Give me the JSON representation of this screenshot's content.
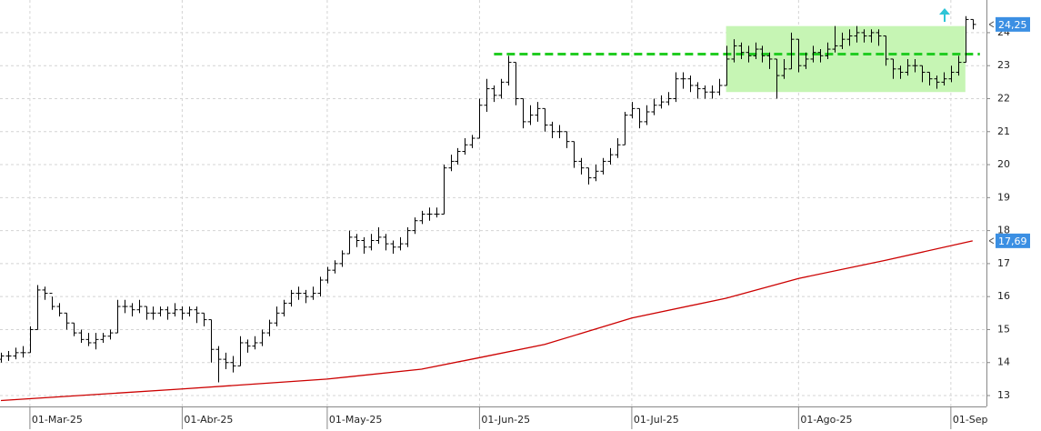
{
  "chart_data": {
    "type": "ohlc",
    "color": "#000000",
    "categories": [
      null,
      null,
      null,
      null,
      "01-Mar-25",
      null,
      null,
      null,
      null,
      null,
      null,
      null,
      null,
      null,
      null,
      null,
      null,
      null,
      null,
      null,
      null,
      null,
      null,
      null,
      null,
      "01-Abr-25",
      null,
      null,
      null,
      null,
      null,
      null,
      null,
      null,
      null,
      null,
      null,
      null,
      null,
      null,
      null,
      null,
      null,
      null,
      null,
      "01-May-25",
      null,
      null,
      null,
      null,
      null,
      null,
      null,
      null,
      null,
      null,
      null,
      null,
      null,
      null,
      null,
      null,
      null,
      null,
      null,
      null,
      "01-Jun-25",
      null,
      null,
      null,
      null,
      null,
      null,
      null,
      null,
      null,
      null,
      null,
      null,
      null,
      null,
      null,
      null,
      null,
      null,
      null,
      null,
      "01-Jul-25",
      null,
      null,
      null,
      null,
      null,
      null,
      null,
      null,
      null,
      null,
      null,
      null,
      null,
      null,
      null,
      null,
      null,
      null,
      null,
      null,
      null,
      null,
      "01-Ago-25",
      null,
      null,
      null,
      null,
      null,
      null,
      null,
      null,
      null,
      null,
      null,
      null,
      null,
      null,
      null,
      null,
      null,
      null,
      null,
      null,
      "01-Sep",
      null,
      null,
      null
    ],
    "open": [
      14.1,
      14.2,
      14.2,
      14.3,
      14.3,
      15.0,
      16.2,
      16.1,
      15.7,
      15.5,
      15.2,
      14.9,
      14.7,
      14.6,
      14.7,
      14.8,
      14.9,
      15.7,
      15.7,
      15.6,
      15.7,
      15.5,
      15.5,
      15.6,
      15.5,
      15.6,
      15.5,
      15.6,
      15.5,
      15.3,
      14.4,
      14.1,
      14.0,
      13.9,
      14.6,
      14.5,
      14.6,
      14.9,
      15.2,
      15.5,
      15.8,
      16.1,
      16.1,
      16.0,
      16.1,
      16.5,
      16.8,
      17.0,
      17.3,
      17.8,
      17.7,
      17.5,
      17.7,
      17.8,
      17.6,
      17.5,
      17.6,
      18.0,
      18.3,
      18.5,
      18.5,
      18.5,
      19.9,
      20.1,
      20.4,
      20.6,
      20.8,
      21.8,
      22.3,
      22.1,
      22.5,
      23.1,
      22.0,
      21.3,
      21.5,
      21.7,
      21.2,
      21.0,
      21.0,
      20.7,
      20.1,
      19.9,
      19.6,
      19.8,
      20.1,
      20.3,
      20.6,
      21.5,
      21.7,
      21.3,
      21.6,
      21.8,
      21.9,
      22.0,
      22.6,
      22.6,
      22.4,
      22.3,
      22.2,
      22.2,
      22.4,
      23.2,
      23.6,
      23.4,
      23.3,
      23.5,
      23.3,
      23.2,
      22.7,
      22.9,
      23.8,
      23.0,
      23.2,
      23.4,
      23.3,
      23.5,
      23.6,
      23.8,
      23.9,
      24.0,
      23.9,
      24.0,
      23.9,
      23.2,
      22.9,
      22.8,
      23.0,
      23.0,
      22.8,
      22.6,
      22.5,
      22.6,
      22.8,
      23.1,
      24.4
    ],
    "high": [
      14.3,
      14.35,
      14.45,
      14.5,
      15.1,
      16.35,
      16.3,
      16.0,
      15.8,
      15.5,
      15.2,
      15.0,
      14.9,
      14.9,
      14.9,
      15.0,
      15.9,
      15.9,
      15.8,
      15.9,
      15.7,
      15.7,
      15.7,
      15.7,
      15.8,
      15.7,
      15.7,
      15.7,
      15.5,
      15.3,
      14.5,
      14.3,
      14.2,
      14.8,
      14.7,
      14.8,
      15.0,
      15.3,
      15.7,
      15.9,
      16.2,
      16.3,
      16.2,
      16.3,
      16.6,
      16.9,
      17.1,
      17.4,
      18.0,
      17.9,
      17.8,
      17.9,
      18.1,
      17.9,
      17.7,
      17.8,
      18.1,
      18.4,
      18.6,
      18.7,
      18.7,
      20.0,
      20.3,
      20.5,
      20.8,
      20.9,
      22.0,
      22.6,
      22.4,
      22.6,
      23.3,
      23.1,
      22.0,
      21.8,
      21.9,
      21.7,
      21.3,
      21.2,
      21.0,
      20.7,
      20.2,
      19.9,
      20.0,
      20.2,
      20.5,
      20.8,
      21.6,
      21.9,
      21.7,
      21.8,
      22.0,
      22.1,
      22.2,
      22.8,
      22.8,
      22.7,
      22.5,
      22.4,
      22.4,
      22.6,
      23.6,
      23.8,
      23.7,
      23.6,
      23.7,
      23.6,
      23.4,
      23.2,
      23.2,
      24.0,
      23.8,
      23.4,
      23.6,
      23.5,
      23.7,
      24.2,
      24.0,
      24.1,
      24.2,
      24.1,
      24.1,
      24.1,
      23.9,
      23.2,
      23.0,
      23.2,
      23.2,
      23.0,
      22.8,
      22.7,
      22.8,
      23.0,
      23.3,
      24.5,
      24.4
    ],
    "low": [
      14.0,
      14.05,
      14.1,
      14.15,
      14.3,
      15.0,
      15.9,
      15.6,
      15.4,
      15.0,
      14.8,
      14.6,
      14.5,
      14.4,
      14.6,
      14.7,
      14.9,
      15.5,
      15.4,
      15.5,
      15.3,
      15.3,
      15.4,
      15.3,
      15.4,
      15.3,
      15.4,
      15.2,
      15.1,
      14.0,
      13.4,
      13.8,
      13.7,
      13.9,
      14.3,
      14.4,
      14.5,
      14.8,
      15.1,
      15.4,
      15.7,
      15.9,
      15.8,
      15.9,
      16.0,
      16.4,
      16.7,
      16.9,
      17.3,
      17.5,
      17.3,
      17.4,
      17.6,
      17.4,
      17.3,
      17.4,
      17.5,
      17.9,
      18.2,
      18.3,
      18.4,
      18.5,
      19.8,
      20.0,
      20.3,
      20.5,
      20.8,
      21.6,
      21.9,
      22.0,
      22.4,
      21.8,
      21.1,
      21.2,
      21.3,
      21.0,
      20.8,
      20.8,
      20.5,
      19.9,
      19.7,
      19.4,
      19.5,
      19.7,
      20.0,
      20.2,
      20.6,
      21.4,
      21.1,
      21.2,
      21.5,
      21.7,
      21.8,
      21.9,
      22.3,
      22.2,
      22.0,
      22.0,
      22.0,
      22.1,
      22.4,
      23.1,
      23.2,
      23.1,
      23.2,
      23.1,
      22.9,
      22.0,
      22.6,
      22.9,
      22.8,
      22.9,
      23.1,
      23.1,
      23.2,
      23.4,
      23.5,
      23.6,
      23.7,
      23.7,
      23.7,
      23.6,
      23.0,
      22.6,
      22.6,
      22.7,
      22.8,
      22.5,
      22.4,
      22.3,
      22.4,
      22.5,
      22.7,
      23.1,
      24.1
    ],
    "close": [
      14.2,
      14.2,
      14.3,
      14.3,
      15.0,
      16.2,
      16.1,
      15.7,
      15.5,
      15.2,
      14.9,
      14.7,
      14.6,
      14.7,
      14.8,
      14.9,
      15.7,
      15.7,
      15.6,
      15.7,
      15.5,
      15.5,
      15.6,
      15.5,
      15.6,
      15.5,
      15.6,
      15.5,
      15.3,
      14.4,
      14.1,
      14.0,
      13.9,
      14.6,
      14.5,
      14.6,
      14.9,
      15.2,
      15.5,
      15.8,
      16.1,
      16.1,
      16.0,
      16.1,
      16.5,
      16.8,
      17.0,
      17.3,
      17.8,
      17.7,
      17.5,
      17.7,
      17.8,
      17.6,
      17.5,
      17.6,
      18.0,
      18.3,
      18.5,
      18.5,
      18.5,
      19.9,
      20.1,
      20.4,
      20.6,
      20.8,
      21.8,
      22.3,
      22.1,
      22.5,
      23.1,
      22.0,
      21.3,
      21.5,
      21.7,
      21.2,
      21.0,
      21.0,
      20.7,
      20.1,
      19.9,
      19.6,
      19.8,
      20.1,
      20.3,
      20.6,
      21.5,
      21.7,
      21.3,
      21.6,
      21.8,
      21.9,
      22.0,
      22.6,
      22.6,
      22.4,
      22.3,
      22.2,
      22.2,
      22.4,
      23.2,
      23.6,
      23.4,
      23.3,
      23.5,
      23.3,
      23.2,
      22.7,
      22.9,
      23.8,
      23.0,
      23.2,
      23.4,
      23.3,
      23.5,
      23.6,
      23.8,
      23.9,
      24.0,
      23.9,
      24.0,
      23.9,
      23.2,
      22.9,
      22.8,
      23.0,
      23.0,
      22.8,
      22.6,
      22.5,
      22.6,
      22.8,
      23.1,
      24.4,
      24.25
    ],
    "ma": {
      "color": "#cc0000",
      "x": [
        0,
        25,
        45,
        58,
        66,
        75,
        87,
        100,
        110,
        122,
        134
      ],
      "values": [
        12.85,
        13.2,
        13.5,
        13.8,
        14.15,
        14.55,
        15.35,
        15.95,
        16.55,
        17.1,
        17.69
      ]
    },
    "zone": {
      "from_index": 100,
      "to_index": 133,
      "low": 22.2,
      "high": 24.2,
      "color": "#c6f5b4"
    },
    "level": {
      "value": 23.35,
      "from_index": 68,
      "to_index": 135,
      "color": "#22cc22"
    },
    "last_price": {
      "value": 24.25,
      "label": "24,25"
    },
    "ma_last": {
      "value": 17.69,
      "label": "17,69"
    },
    "ylim": [
      12.67,
      24.99
    ],
    "yticks": [
      13,
      14,
      15,
      16,
      17,
      18,
      19,
      20,
      21,
      22,
      23,
      24
    ],
    "grid": true
  }
}
